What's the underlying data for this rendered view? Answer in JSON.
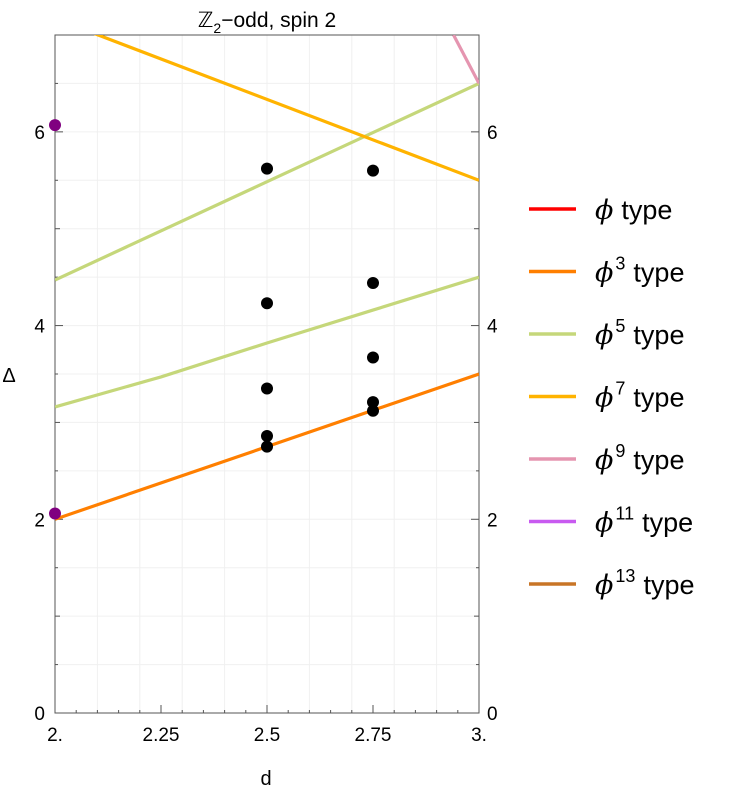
{
  "chart_data": {
    "type": "line",
    "title": "ℤ₂−odd, spin 2",
    "title_parts": {
      "main": "ℤ",
      "sub": "2",
      "rest": "−odd, spin 2"
    },
    "xlabel": "d",
    "ylabel": "Δ",
    "xlim": [
      2,
      3
    ],
    "ylim": [
      0,
      7
    ],
    "x_ticks": [
      {
        "value": 2,
        "label": "2."
      },
      {
        "value": 2.25,
        "label": "2.25"
      },
      {
        "value": 2.5,
        "label": "2.5"
      },
      {
        "value": 2.75,
        "label": "2.75"
      },
      {
        "value": 3,
        "label": "3."
      }
    ],
    "y_ticks": [
      {
        "value": 0,
        "label": "0"
      },
      {
        "value": 2,
        "label": "2"
      },
      {
        "value": 4,
        "label": "4"
      },
      {
        "value": 6,
        "label": "6"
      }
    ],
    "grid": true,
    "legend_position": "right",
    "legend": [
      {
        "symbol": "ϕ",
        "power": "",
        "text": "type",
        "color": "#FF0000"
      },
      {
        "symbol": "ϕ",
        "power": "3",
        "text": "type",
        "color": "#FF7F00"
      },
      {
        "symbol": "ϕ",
        "power": "5",
        "text": "type",
        "color": "#C5D77A"
      },
      {
        "symbol": "ϕ",
        "power": "7",
        "text": "type",
        "color": "#FFB300"
      },
      {
        "symbol": "ϕ",
        "power": "9",
        "text": "type",
        "color": "#E595B0"
      },
      {
        "symbol": "ϕ",
        "power": "11",
        "text": "type",
        "color": "#C85AF0"
      },
      {
        "symbol": "ϕ",
        "power": "13",
        "text": "type",
        "color": "#C87526"
      }
    ],
    "series": [
      {
        "legend_index": 1,
        "color": "#FF7F00",
        "points": [
          [
            2,
            2.0
          ],
          [
            3,
            3.5
          ]
        ]
      },
      {
        "legend_index": 2,
        "color": "#C5D77A",
        "points": [
          [
            2,
            3.16
          ],
          [
            2.25,
            3.47
          ],
          [
            2.5,
            3.82
          ],
          [
            2.75,
            4.16
          ],
          [
            3,
            4.5
          ]
        ]
      },
      {
        "legend_index": 2,
        "color": "#C5D77A",
        "points": [
          [
            2,
            4.47
          ],
          [
            3,
            6.5
          ]
        ]
      },
      {
        "legend_index": 3,
        "color": "#FFB300",
        "points": [
          [
            2,
            7.17
          ],
          [
            3,
            5.5
          ]
        ]
      },
      {
        "legend_index": 4,
        "color": "#E595B0",
        "points": [
          [
            2.94,
            7.0
          ],
          [
            3,
            6.5
          ]
        ]
      }
    ],
    "scatter": [
      {
        "color": "#800080",
        "points": [
          [
            2,
            6.07
          ],
          [
            2,
            2.06
          ]
        ]
      },
      {
        "color": "#000000",
        "points": [
          [
            2.5,
            5.62
          ],
          [
            2.5,
            4.23
          ],
          [
            2.5,
            3.35
          ],
          [
            2.5,
            2.86
          ],
          [
            2.5,
            2.75
          ],
          [
            2.75,
            5.6
          ],
          [
            2.75,
            4.44
          ],
          [
            2.75,
            3.67
          ],
          [
            2.75,
            3.21
          ],
          [
            2.75,
            3.12
          ]
        ]
      }
    ]
  }
}
